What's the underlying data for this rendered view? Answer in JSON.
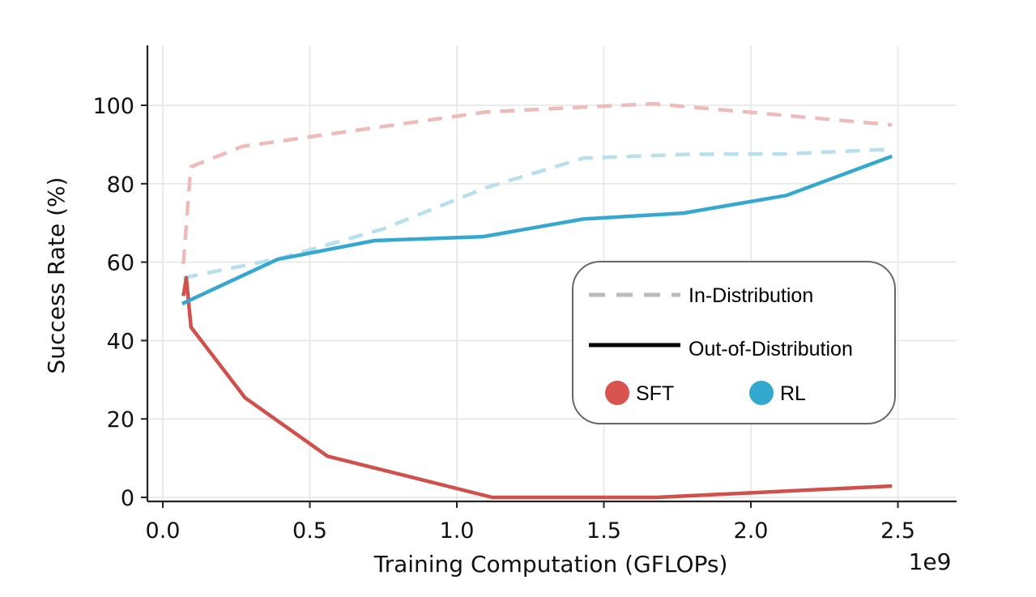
{
  "chart_data": {
    "type": "line",
    "title": "",
    "xlabel": "Training Computation (GFLOPs)",
    "ylabel": "Success Rate (%)",
    "x_offset_label": "1e9",
    "xlim": [
      -0.05,
      2.7
    ],
    "ylim": [
      -1,
      115
    ],
    "xticks": [
      0.0,
      0.5,
      1.0,
      1.5,
      2.0,
      2.5
    ],
    "xtick_labels": [
      "0.0",
      "0.5",
      "1.0",
      "1.5",
      "2.0",
      "2.5"
    ],
    "yticks": [
      0,
      20,
      40,
      60,
      80,
      100
    ],
    "ytick_labels": [
      "0",
      "20",
      "40",
      "60",
      "80",
      "100"
    ],
    "grid": true,
    "legend": {
      "placement": "center-right",
      "entries": [
        {
          "label": "In-Distribution",
          "style": "dashed",
          "color": "#bbbbbb"
        },
        {
          "label": "Out-of-Distribution",
          "style": "solid",
          "color": "#000000"
        },
        {
          "label": "SFT",
          "style": "dot",
          "color": "#d9534f"
        },
        {
          "label": "RL",
          "style": "dot",
          "color": "#34a9d0"
        }
      ]
    },
    "series": [
      {
        "name": "SFT In-Distribution",
        "method": "SFT",
        "split": "In-Distribution",
        "style": "dashed",
        "color": "#eebbbb",
        "x": [
          0.07,
          0.095,
          0.27,
          1.1,
          1.5,
          1.67,
          2.48
        ],
        "y": [
          59.5,
          84.3,
          89.5,
          98.3,
          99.8,
          100.4,
          95.0
        ]
      },
      {
        "name": "RL In-Distribution",
        "method": "RL",
        "split": "In-Distribution",
        "style": "dashed",
        "color": "#b7dfec",
        "x": [
          0.07,
          0.4,
          0.75,
          1.1,
          1.43,
          1.78,
          2.12,
          2.48
        ],
        "y": [
          56.0,
          61.0,
          68.5,
          79.0,
          86.5,
          87.5,
          87.6,
          88.8
        ]
      },
      {
        "name": "SFT Out-of-Distribution",
        "method": "SFT",
        "split": "Out-of-Distribution",
        "style": "solid",
        "color": "#d0504c",
        "x": [
          0.07,
          0.08,
          0.096,
          0.28,
          0.56,
          1.12,
          1.68,
          2.48
        ],
        "y": [
          51.4,
          56.0,
          43.4,
          25.4,
          10.5,
          0.0,
          0.0,
          2.9
        ]
      },
      {
        "name": "RL Out-of-Distribution",
        "method": "RL",
        "split": "Out-of-Distribution",
        "style": "solid",
        "color": "#36a8cf",
        "x": [
          0.066,
          0.39,
          0.72,
          1.09,
          1.43,
          1.77,
          2.12,
          2.48
        ],
        "y": [
          49.4,
          60.7,
          65.5,
          66.5,
          71.0,
          72.5,
          77.0,
          87.0
        ]
      }
    ]
  }
}
